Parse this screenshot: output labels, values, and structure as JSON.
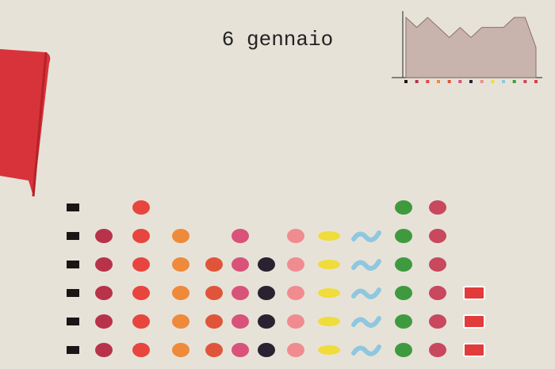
{
  "chart_data": {
    "type": "pictogram",
    "title": "6 gennaio",
    "categories": [
      null,
      null,
      null,
      null,
      null,
      null,
      null,
      null,
      null,
      null,
      null,
      null,
      null
    ],
    "values": [
      6,
      5,
      6,
      5,
      4,
      5,
      4,
      5,
      5,
      5,
      6,
      6,
      3
    ],
    "colors": [
      "#1a1616",
      "#b8324a",
      "#e8453f",
      "#ef8a3a",
      "#e0553a",
      "#d9527a",
      "#2a2230",
      "#f08c90",
      "#f0dc3a",
      "#8ec7e0",
      "#3f9a3f",
      "#c8485e",
      "#e23b3b"
    ]
  }
}
